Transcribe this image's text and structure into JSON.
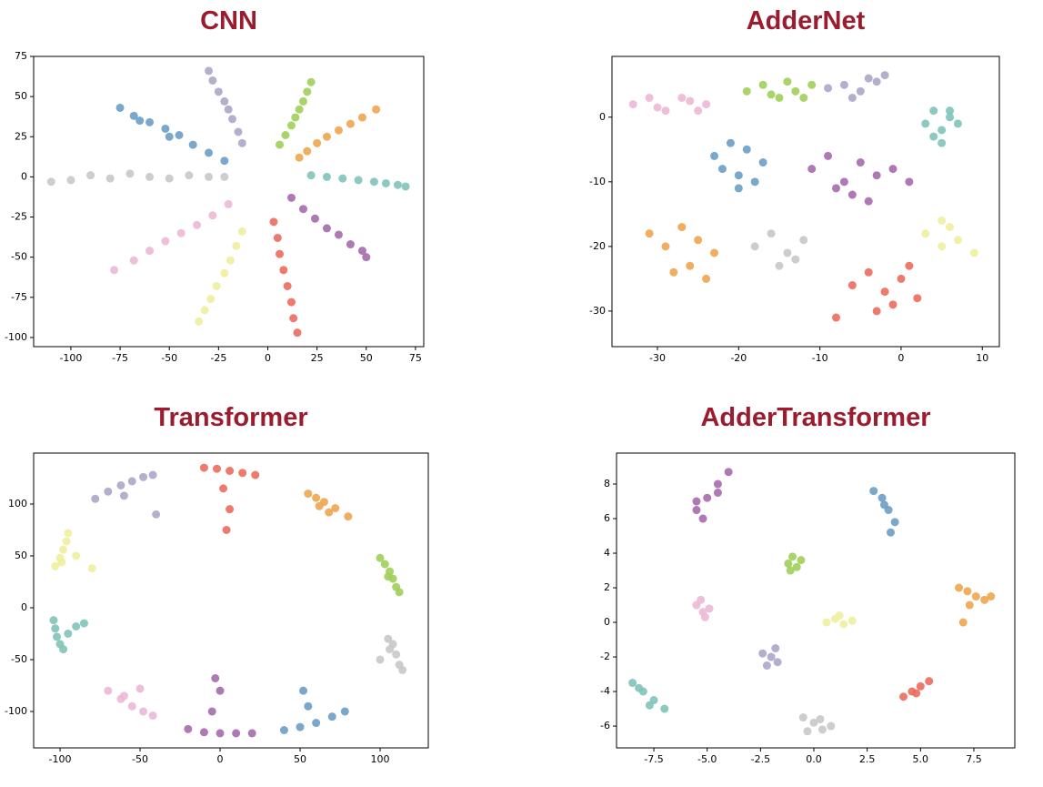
{
  "chart_data": [
    {
      "type": "scatter",
      "title": "CNN",
      "xlim": [
        -118.9,
        79.2
      ],
      "ylim": [
        -105.7,
        75
      ],
      "xticks": [
        -100,
        -75,
        -50,
        -25,
        0,
        25,
        50,
        75
      ],
      "yticks": [
        -100,
        -75,
        -50,
        -25,
        0,
        25,
        50,
        75
      ],
      "series": [
        {
          "color": "#6a9ec5",
          "x": [
            -75,
            -68,
            -60,
            -52,
            -45,
            -38,
            -30,
            -22,
            -65,
            -50
          ],
          "values": [
            43,
            38,
            34,
            30,
            26,
            20,
            15,
            10,
            35,
            25
          ]
        },
        {
          "color": "#aba7c9",
          "x": [
            -30,
            -28,
            -25,
            -22,
            -20,
            -18,
            -15,
            -13
          ],
          "values": [
            66,
            60,
            53,
            47,
            42,
            36,
            28,
            21
          ]
        },
        {
          "color": "#9ecf5a",
          "x": [
            22,
            20,
            18,
            16,
            14,
            12,
            9,
            6
          ],
          "values": [
            59,
            53,
            47,
            42,
            37,
            32,
            26,
            20
          ]
        },
        {
          "color": "#eda54f",
          "x": [
            55,
            48,
            42,
            36,
            30,
            25,
            20,
            16
          ],
          "values": [
            42,
            37,
            33,
            29,
            25,
            21,
            16,
            12
          ]
        },
        {
          "color": "#7fc4b8",
          "x": [
            22,
            30,
            38,
            46,
            54,
            60,
            66,
            70
          ],
          "values": [
            1,
            0,
            -1,
            -2,
            -3,
            -4,
            -5,
            -6
          ]
        },
        {
          "color": "#a56aac",
          "x": [
            12,
            18,
            24,
            30,
            36,
            42,
            48,
            50
          ],
          "values": [
            -13,
            -20,
            -26,
            -32,
            -36,
            -42,
            -46,
            -50
          ]
        },
        {
          "color": "#ec6b5e",
          "x": [
            3,
            5,
            6,
            8,
            10,
            12,
            13,
            15
          ],
          "values": [
            -28,
            -38,
            -48,
            -58,
            -68,
            -78,
            -88,
            -97
          ]
        },
        {
          "color": "#eeeea0",
          "x": [
            -13,
            -16,
            -19,
            -22,
            -26,
            -29,
            -32,
            -35
          ],
          "values": [
            -34,
            -43,
            -52,
            -60,
            -68,
            -76,
            -83,
            -90
          ]
        },
        {
          "color": "#ecb8d4",
          "x": [
            -20,
            -28,
            -36,
            -44,
            -52,
            -60,
            -68,
            -78
          ],
          "values": [
            -17,
            -24,
            -30,
            -35,
            -40,
            -46,
            -52,
            -58
          ]
        },
        {
          "color": "#c8c8c8",
          "x": [
            -110,
            -100,
            -90,
            -80,
            -70,
            -60,
            -50,
            -40,
            -30,
            -22
          ],
          "values": [
            -3,
            -2,
            1,
            -1,
            2,
            0,
            -1,
            1,
            0,
            0
          ]
        }
      ]
    },
    {
      "type": "scatter",
      "title": "AdderNet",
      "xlim": [
        -35.6,
        12.1
      ],
      "ylim": [
        -35.5,
        9.4
      ],
      "xticks": [
        -30,
        -20,
        -10,
        0,
        10
      ],
      "yticks": [
        -30,
        -20,
        -10,
        0
      ],
      "series": [
        {
          "color": "#ecb8d4",
          "x": [
            -33,
            -31,
            -29,
            -27,
            -25,
            -24,
            -30,
            -26
          ],
          "values": [
            2,
            3,
            1,
            3,
            1,
            2,
            1.5,
            2.5
          ]
        },
        {
          "color": "#9ecf5a",
          "x": [
            -19,
            -17,
            -15,
            -13,
            -11,
            -16,
            -14,
            -12
          ],
          "values": [
            4,
            5,
            3,
            4,
            5,
            3.5,
            5.5,
            3
          ]
        },
        {
          "color": "#aba7c9",
          "x": [
            -9,
            -7,
            -5,
            -3,
            -2,
            -6,
            -4
          ],
          "values": [
            4.5,
            5,
            4,
            5.5,
            6.5,
            3,
            6
          ]
        },
        {
          "color": "#7fc4b8",
          "x": [
            3,
            4,
            5,
            6,
            7,
            5,
            4,
            6
          ],
          "values": [
            -1,
            1,
            -2,
            0,
            -1,
            -4,
            -3,
            1
          ]
        },
        {
          "color": "#6a9ec5",
          "x": [
            -23,
            -21,
            -19,
            -17,
            -20,
            -22,
            -18,
            -20
          ],
          "values": [
            -6,
            -4,
            -5,
            -7,
            -9,
            -8,
            -10,
            -11
          ]
        },
        {
          "color": "#a56aac",
          "x": [
            -11,
            -9,
            -7,
            -5,
            -3,
            -1,
            1,
            -6,
            -4,
            -8
          ],
          "values": [
            -8,
            -6,
            -10,
            -7,
            -9,
            -8,
            -10,
            -12,
            -13,
            -11
          ]
        },
        {
          "color": "#eda54f",
          "x": [
            -31,
            -29,
            -27,
            -25,
            -23,
            -26,
            -24,
            -28
          ],
          "values": [
            -18,
            -20,
            -17,
            -19,
            -21,
            -23,
            -25,
            -24
          ]
        },
        {
          "color": "#c8c8c8",
          "x": [
            -18,
            -16,
            -14,
            -12,
            -15,
            -13
          ],
          "values": [
            -20,
            -18,
            -21,
            -19,
            -23,
            -22
          ]
        },
        {
          "color": "#eeeea0",
          "x": [
            3,
            5,
            7,
            9,
            5,
            6
          ],
          "values": [
            -18,
            -16,
            -19,
            -21,
            -20,
            -17
          ]
        },
        {
          "color": "#ec6b5e",
          "x": [
            -6,
            -4,
            -2,
            0,
            2,
            -3,
            -1,
            1,
            -8
          ],
          "values": [
            -26,
            -24,
            -27,
            -25,
            -28,
            -30,
            -29,
            -23,
            -31
          ]
        }
      ]
    },
    {
      "type": "scatter",
      "title": "Transformer",
      "xlim": [
        -116.5,
        130.1
      ],
      "ylim": [
        -135.1,
        149.1
      ],
      "xticks": [
        -100,
        -50,
        0,
        50,
        100
      ],
      "yticks": [
        -100,
        -50,
        0,
        50,
        100
      ],
      "series": [
        {
          "color": "#aba7c9",
          "x": [
            -78,
            -70,
            -62,
            -55,
            -48,
            -42,
            -60,
            -40
          ],
          "values": [
            105,
            112,
            118,
            122,
            126,
            128,
            108,
            90
          ]
        },
        {
          "color": "#ec6b5e",
          "x": [
            -10,
            -2,
            6,
            14,
            22,
            2,
            6,
            4
          ],
          "values": [
            135,
            134,
            132,
            130,
            128,
            115,
            95,
            75
          ]
        },
        {
          "color": "#eda54f",
          "x": [
            55,
            60,
            65,
            72,
            80,
            68,
            62
          ],
          "values": [
            110,
            106,
            102,
            96,
            88,
            92,
            98
          ]
        },
        {
          "color": "#9ecf5a",
          "x": [
            100,
            103,
            106,
            108,
            110,
            105,
            112
          ],
          "values": [
            48,
            42,
            35,
            28,
            20,
            30,
            15
          ]
        },
        {
          "color": "#eeeea0",
          "x": [
            -103,
            -100,
            -98,
            -96,
            -95,
            -90,
            -80,
            -99
          ],
          "values": [
            40,
            48,
            56,
            64,
            72,
            50,
            38,
            44
          ]
        },
        {
          "color": "#7fc4b8",
          "x": [
            -104,
            -103,
            -102,
            -100,
            -98,
            -95,
            -90,
            -85
          ],
          "values": [
            -12,
            -20,
            -28,
            -35,
            -40,
            -25,
            -18,
            -15
          ]
        },
        {
          "color": "#c8c8c8",
          "x": [
            105,
            108,
            110,
            112,
            114,
            100,
            106
          ],
          "values": [
            -30,
            -35,
            -45,
            -55,
            -60,
            -50,
            -40
          ]
        },
        {
          "color": "#6a9ec5",
          "x": [
            40,
            50,
            60,
            70,
            78,
            55,
            52
          ],
          "values": [
            -118,
            -115,
            -111,
            -105,
            -100,
            -95,
            -80
          ]
        },
        {
          "color": "#a56aac",
          "x": [
            -20,
            -10,
            0,
            10,
            20,
            -5,
            0,
            -3
          ],
          "values": [
            -117,
            -120,
            -121,
            -121,
            -121,
            -100,
            -80,
            -68
          ]
        },
        {
          "color": "#ecb8d4",
          "x": [
            -70,
            -62,
            -55,
            -48,
            -42,
            -60,
            -50
          ],
          "values": [
            -80,
            -88,
            -95,
            -100,
            -104,
            -85,
            -78
          ]
        }
      ]
    },
    {
      "type": "scatter",
      "title": "AdderTransformer",
      "xlim": [
        -9.25,
        9.42
      ],
      "ylim": [
        -7.26,
        9.79
      ],
      "xticks": [
        {
          "value": -7.5,
          "label": "-7.5"
        },
        {
          "value": -5,
          "label": "-5.0"
        },
        {
          "value": -2.5,
          "label": "-2.5"
        },
        {
          "value": 0,
          "label": "0.0"
        },
        {
          "value": 2.5,
          "label": "2.5"
        },
        {
          "value": 5,
          "label": "5.0"
        },
        {
          "value": 7.5,
          "label": "7.5"
        }
      ],
      "yticks": [
        -6,
        -4,
        -2,
        0,
        2,
        4,
        6,
        8
      ],
      "series": [
        {
          "color": "#a56aac",
          "x": [
            -5.5,
            -5,
            -4.5,
            -4,
            -4.5,
            -5.5,
            -5.2
          ],
          "values": [
            6.5,
            7.2,
            8,
            8.7,
            7.5,
            7,
            6
          ]
        },
        {
          "color": "#6a9ec5",
          "x": [
            2.8,
            3.2,
            3.5,
            3.8,
            3.6,
            3.3
          ],
          "values": [
            7.6,
            7.2,
            6.5,
            5.8,
            5.2,
            6.8
          ]
        },
        {
          "color": "#9ecf5a",
          "x": [
            -1.2,
            -1,
            -0.8,
            -1.1,
            -0.6
          ],
          "values": [
            3.4,
            3.8,
            3.2,
            3.0,
            3.6
          ]
        },
        {
          "color": "#eda54f",
          "x": [
            6.8,
            7.2,
            7.6,
            8,
            7.3,
            7,
            8.3
          ],
          "values": [
            2,
            1.8,
            1.5,
            1.3,
            1,
            0,
            1.5
          ]
        },
        {
          "color": "#ecb8d4",
          "x": [
            -5.5,
            -5.2,
            -4.9,
            -5.3,
            -5.1
          ],
          "values": [
            1,
            0.6,
            0.8,
            1.3,
            0.3
          ]
        },
        {
          "color": "#eeeea0",
          "x": [
            0.6,
            1,
            1.4,
            1.8,
            1.2
          ],
          "values": [
            0,
            0.2,
            -0.1,
            0.1,
            0.4
          ]
        },
        {
          "color": "#aba7c9",
          "x": [
            -2.4,
            -2,
            -1.7,
            -2.2,
            -1.8
          ],
          "values": [
            -1.8,
            -2,
            -2.3,
            -2.5,
            -1.5
          ]
        },
        {
          "color": "#ec6b5e",
          "x": [
            4.2,
            4.6,
            5,
            5.4,
            4.8
          ],
          "values": [
            -4.3,
            -4,
            -3.7,
            -3.4,
            -4.1
          ]
        },
        {
          "color": "#7fc4b8",
          "x": [
            -8.5,
            -8,
            -7.5,
            -7,
            -7.7,
            -8.2
          ],
          "values": [
            -3.5,
            -4,
            -4.5,
            -5,
            -4.8,
            -3.8
          ]
        },
        {
          "color": "#c8c8c8",
          "x": [
            -0.5,
            0,
            0.4,
            0.8,
            -0.3,
            0.3
          ],
          "values": [
            -5.5,
            -5.8,
            -6.2,
            -6,
            -6.3,
            -5.6
          ]
        }
      ]
    }
  ]
}
